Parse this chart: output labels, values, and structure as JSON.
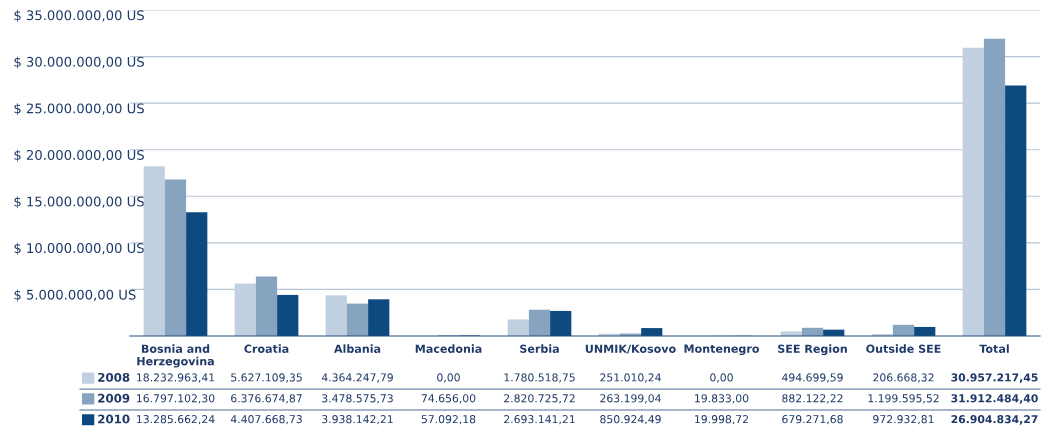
{
  "chart_data": {
    "type": "bar",
    "categories": [
      "Bosnia and\nHerzegovina",
      "Croatia",
      "Albania",
      "Macedonia",
      "Serbia",
      "UNMIK/Kosovo",
      "Montenegro",
      "SEE Region",
      "Outside SEE",
      "Total"
    ],
    "series": [
      {
        "name": "2008",
        "color": "#c0d0e0",
        "values": [
          18232963.41,
          5627109.35,
          4364247.79,
          0.0,
          1780518.75,
          251010.24,
          0.0,
          494699.59,
          206668.32,
          30957217.45
        ],
        "value_labels": [
          "18.232.963,41",
          "5.627.109,35",
          "4.364.247,79",
          "0,00",
          "1.780.518,75",
          "251.010,24",
          "0,00",
          "494.699,59",
          "206.668,32",
          "30.957.217,45"
        ]
      },
      {
        "name": "2009",
        "color": "#86a3bf",
        "values": [
          16797102.3,
          6376674.87,
          3478575.73,
          74656.0,
          2820725.72,
          263199.04,
          19833.0,
          882122.22,
          1199595.52,
          31912484.4
        ],
        "value_labels": [
          "16.797.102,30",
          "6.376.674,87",
          "3.478.575,73",
          "74.656,00",
          "2.820.725,72",
          "263.199,04",
          "19.833,00",
          "882.122,22",
          "1.199.595,52",
          "31.912.484,40"
        ]
      },
      {
        "name": "2010",
        "color": "#0d4a80",
        "values": [
          13285662.24,
          4407668.73,
          3938142.21,
          57092.18,
          2693141.21,
          850924.49,
          19998.72,
          679271.68,
          972932.81,
          26904834.27
        ],
        "value_labels": [
          "13.285.662,24",
          "4.407.668,73",
          "3.938.142,21",
          "57.092,18",
          "2.693.141,21",
          "850.924,49",
          "19.998,72",
          "679.271,68",
          "972.932,81",
          "26.904.834,27"
        ]
      }
    ],
    "ylim": [
      0,
      35000000
    ],
    "yticks": [
      {
        "value": 5000000,
        "label": "$ 5.000.000,00 US"
      },
      {
        "value": 10000000,
        "label": "$ 10.000.000,00 US"
      },
      {
        "value": 15000000,
        "label": "$ 15.000.000,00 US"
      },
      {
        "value": 20000000,
        "label": "$ 20.000.000,00 US"
      },
      {
        "value": 25000000,
        "label": "$ 25.000.000,00 US"
      },
      {
        "value": 30000000,
        "label": "$ 30.000.000,00 US"
      },
      {
        "value": 35000000,
        "label": "$ 35.000.000,00 US"
      }
    ],
    "grid": "y",
    "legend": "bottom left"
  }
}
